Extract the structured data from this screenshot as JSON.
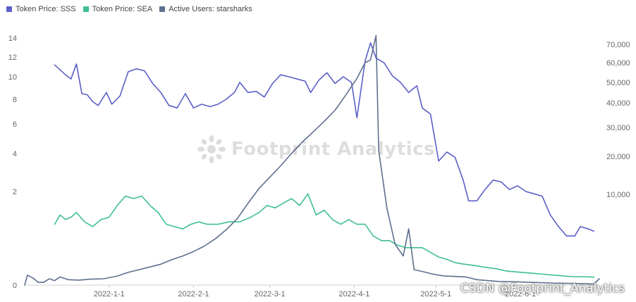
{
  "legend": [
    {
      "label": "Token Price: SSS",
      "color": "#5b5fc7"
    },
    {
      "label": "Token Price: SEA",
      "color": "#3fbf93"
    },
    {
      "label": "Active Users: starsharks",
      "color": "#5f6f8f"
    }
  ],
  "watermarks": {
    "footprint": "Footprint Analytics",
    "csdn": "CSDN @Footprint_Analytics"
  },
  "chart_data": {
    "type": "line",
    "x_tick_labels": [
      "2022-1-1",
      "2022-2-1",
      "2022-3-1",
      "2022-4-1",
      "2022-5-1",
      "2022-6-1"
    ],
    "x_range": [
      "2021-12-01",
      "2022-06-30"
    ],
    "left_axis": {
      "scale": "nonlinear",
      "tick_labels": [
        "0",
        "2",
        "4",
        "6",
        "8",
        "10",
        "12",
        "14"
      ],
      "tick_values": [
        0,
        2,
        4,
        6,
        8,
        10,
        12,
        14
      ],
      "range": [
        0,
        14.5
      ]
    },
    "right_axis": {
      "scale": "nonlinear",
      "tick_labels": [
        "10,000",
        "20,000",
        "30,000",
        "40,000",
        "50,000",
        "60,000",
        "70,000"
      ],
      "tick_values": [
        10000,
        20000,
        30000,
        40000,
        50000,
        60000,
        70000
      ]
    },
    "grid": false,
    "legend_position": "top-left",
    "series": [
      {
        "name": "Token Price: SSS",
        "axis": "left",
        "color": "#5b5fc7",
        "points": [
          [
            "2021-12-12",
            11.2
          ],
          [
            "2021-12-14",
            10.7
          ],
          [
            "2021-12-16",
            10.2
          ],
          [
            "2021-12-18",
            9.8
          ],
          [
            "2021-12-20",
            11.3
          ],
          [
            "2021-12-22",
            8.5
          ],
          [
            "2021-12-24",
            8.4
          ],
          [
            "2021-12-26",
            7.8
          ],
          [
            "2021-12-28",
            7.5
          ],
          [
            "2021-12-31",
            8.6
          ],
          [
            "2022-01-02",
            7.6
          ],
          [
            "2022-01-05",
            8.3
          ],
          [
            "2022-01-08",
            10.5
          ],
          [
            "2022-01-11",
            10.8
          ],
          [
            "2022-01-14",
            10.6
          ],
          [
            "2022-01-17",
            9.4
          ],
          [
            "2022-01-20",
            8.6
          ],
          [
            "2022-01-23",
            7.5
          ],
          [
            "2022-01-26",
            7.3
          ],
          [
            "2022-01-29",
            8.5
          ],
          [
            "2022-02-01",
            7.3
          ],
          [
            "2022-02-04",
            7.6
          ],
          [
            "2022-02-07",
            7.4
          ],
          [
            "2022-02-10",
            7.6
          ],
          [
            "2022-02-13",
            8.0
          ],
          [
            "2022-02-16",
            8.6
          ],
          [
            "2022-02-18",
            9.5
          ],
          [
            "2022-02-21",
            8.6
          ],
          [
            "2022-02-24",
            8.7
          ],
          [
            "2022-02-27",
            8.2
          ],
          [
            "2022-03-02",
            9.4
          ],
          [
            "2022-03-05",
            10.2
          ],
          [
            "2022-03-08",
            10.0
          ],
          [
            "2022-03-11",
            9.8
          ],
          [
            "2022-03-14",
            9.6
          ],
          [
            "2022-03-16",
            8.6
          ],
          [
            "2022-03-19",
            9.7
          ],
          [
            "2022-03-22",
            10.4
          ],
          [
            "2022-03-25",
            9.4
          ],
          [
            "2022-03-28",
            10.0
          ],
          [
            "2022-03-31",
            9.5
          ],
          [
            "2022-04-02",
            6.5
          ],
          [
            "2022-04-05",
            11.6
          ],
          [
            "2022-04-07",
            13.5
          ],
          [
            "2022-04-09",
            11.9
          ],
          [
            "2022-04-12",
            11.4
          ],
          [
            "2022-04-15",
            10.1
          ],
          [
            "2022-04-18",
            9.5
          ],
          [
            "2022-04-21",
            8.6
          ],
          [
            "2022-04-24",
            9.2
          ],
          [
            "2022-04-26",
            7.3
          ],
          [
            "2022-04-29",
            6.8
          ],
          [
            "2022-05-02",
            3.6
          ],
          [
            "2022-05-05",
            4.1
          ],
          [
            "2022-05-08",
            3.8
          ],
          [
            "2022-05-11",
            2.6
          ],
          [
            "2022-05-13",
            1.8
          ],
          [
            "2022-05-16",
            1.8
          ],
          [
            "2022-05-19",
            2.1
          ],
          [
            "2022-05-22",
            2.6
          ],
          [
            "2022-05-25",
            2.5
          ],
          [
            "2022-05-28",
            2.1
          ],
          [
            "2022-05-31",
            2.3
          ],
          [
            "2022-06-03",
            2.0
          ],
          [
            "2022-06-06",
            1.95
          ],
          [
            "2022-06-09",
            1.9
          ],
          [
            "2022-06-12",
            1.5
          ],
          [
            "2022-06-15",
            1.25
          ],
          [
            "2022-06-18",
            1.05
          ],
          [
            "2022-06-21",
            1.05
          ],
          [
            "2022-06-23",
            1.25
          ],
          [
            "2022-06-26",
            1.2
          ],
          [
            "2022-06-28",
            1.15
          ]
        ]
      },
      {
        "name": "Token Price: SEA",
        "axis": "left",
        "color": "#3fbf93",
        "points": [
          [
            "2021-12-12",
            1.3
          ],
          [
            "2021-12-14",
            1.5
          ],
          [
            "2021-12-16",
            1.4
          ],
          [
            "2021-12-18",
            1.45
          ],
          [
            "2021-12-20",
            1.55
          ],
          [
            "2021-12-23",
            1.35
          ],
          [
            "2021-12-26",
            1.25
          ],
          [
            "2021-12-29",
            1.4
          ],
          [
            "2022-01-01",
            1.45
          ],
          [
            "2022-01-04",
            1.7
          ],
          [
            "2022-01-07",
            1.9
          ],
          [
            "2022-01-10",
            1.85
          ],
          [
            "2022-01-13",
            1.9
          ],
          [
            "2022-01-16",
            1.7
          ],
          [
            "2022-01-19",
            1.55
          ],
          [
            "2022-01-22",
            1.3
          ],
          [
            "2022-01-25",
            1.25
          ],
          [
            "2022-01-28",
            1.2
          ],
          [
            "2022-01-31",
            1.3
          ],
          [
            "2022-02-03",
            1.35
          ],
          [
            "2022-02-06",
            1.3
          ],
          [
            "2022-02-10",
            1.3
          ],
          [
            "2022-02-14",
            1.35
          ],
          [
            "2022-02-18",
            1.35
          ],
          [
            "2022-02-22",
            1.45
          ],
          [
            "2022-02-25",
            1.55
          ],
          [
            "2022-02-28",
            1.7
          ],
          [
            "2022-03-03",
            1.65
          ],
          [
            "2022-03-06",
            1.75
          ],
          [
            "2022-03-09",
            1.85
          ],
          [
            "2022-03-12",
            1.7
          ],
          [
            "2022-03-15",
            1.95
          ],
          [
            "2022-03-18",
            1.5
          ],
          [
            "2022-03-21",
            1.6
          ],
          [
            "2022-03-24",
            1.4
          ],
          [
            "2022-03-27",
            1.3
          ],
          [
            "2022-03-30",
            1.4
          ],
          [
            "2022-04-02",
            1.3
          ],
          [
            "2022-04-05",
            1.3
          ],
          [
            "2022-04-08",
            1.05
          ],
          [
            "2022-04-11",
            0.95
          ],
          [
            "2022-04-14",
            0.95
          ],
          [
            "2022-04-17",
            0.85
          ],
          [
            "2022-04-20",
            0.8
          ],
          [
            "2022-04-23",
            0.8
          ],
          [
            "2022-04-26",
            0.8
          ],
          [
            "2022-04-29",
            0.7
          ],
          [
            "2022-05-02",
            0.6
          ],
          [
            "2022-05-05",
            0.55
          ],
          [
            "2022-05-08",
            0.48
          ],
          [
            "2022-05-11",
            0.45
          ],
          [
            "2022-05-15",
            0.42
          ],
          [
            "2022-05-19",
            0.38
          ],
          [
            "2022-05-23",
            0.35
          ],
          [
            "2022-05-27",
            0.3
          ],
          [
            "2022-05-31",
            0.28
          ],
          [
            "2022-06-04",
            0.26
          ],
          [
            "2022-06-08",
            0.24
          ],
          [
            "2022-06-12",
            0.22
          ],
          [
            "2022-06-16",
            0.2
          ],
          [
            "2022-06-20",
            0.18
          ],
          [
            "2022-06-24",
            0.18
          ],
          [
            "2022-06-28",
            0.17
          ]
        ]
      },
      {
        "name": "Active Users: starsharks",
        "axis": "right",
        "color": "#5f6f8f",
        "points": [
          [
            "2021-12-01",
            0
          ],
          [
            "2021-12-02",
            1100
          ],
          [
            "2021-12-04",
            800
          ],
          [
            "2021-12-06",
            300
          ],
          [
            "2021-12-08",
            300
          ],
          [
            "2021-12-10",
            700
          ],
          [
            "2021-12-12",
            500
          ],
          [
            "2021-12-14",
            900
          ],
          [
            "2021-12-17",
            600
          ],
          [
            "2021-12-21",
            550
          ],
          [
            "2021-12-25",
            650
          ],
          [
            "2021-12-30",
            700
          ],
          [
            "2022-01-04",
            1000
          ],
          [
            "2022-01-08",
            1400
          ],
          [
            "2022-01-12",
            1700
          ],
          [
            "2022-01-16",
            2000
          ],
          [
            "2022-01-20",
            2300
          ],
          [
            "2022-01-24",
            2800
          ],
          [
            "2022-01-28",
            3200
          ],
          [
            "2022-02-01",
            3700
          ],
          [
            "2022-02-05",
            4300
          ],
          [
            "2022-02-09",
            5100
          ],
          [
            "2022-02-13",
            6100
          ],
          [
            "2022-02-17",
            7300
          ],
          [
            "2022-02-21",
            9000
          ],
          [
            "2022-02-25",
            11500
          ],
          [
            "2022-03-01",
            14500
          ],
          [
            "2022-03-05",
            17500
          ],
          [
            "2022-03-09",
            21000
          ],
          [
            "2022-03-13",
            25000
          ],
          [
            "2022-03-17",
            28500
          ],
          [
            "2022-03-21",
            32500
          ],
          [
            "2022-03-25",
            37000
          ],
          [
            "2022-03-29",
            44000
          ],
          [
            "2022-04-02",
            52000
          ],
          [
            "2022-04-05",
            60000
          ],
          [
            "2022-04-07",
            61500
          ],
          [
            "2022-04-09",
            75000
          ],
          [
            "2022-04-10",
            22000
          ],
          [
            "2022-04-13",
            8500
          ],
          [
            "2022-04-16",
            4500
          ],
          [
            "2022-04-19",
            3200
          ],
          [
            "2022-04-21",
            6200
          ],
          [
            "2022-04-23",
            1700
          ],
          [
            "2022-04-26",
            1500
          ],
          [
            "2022-04-30",
            1200
          ],
          [
            "2022-05-04",
            1000
          ],
          [
            "2022-05-08",
            950
          ],
          [
            "2022-05-12",
            900
          ],
          [
            "2022-05-16",
            600
          ],
          [
            "2022-05-20",
            500
          ],
          [
            "2022-05-24",
            400
          ],
          [
            "2022-05-28",
            380
          ],
          [
            "2022-06-01",
            340
          ],
          [
            "2022-06-05",
            300
          ],
          [
            "2022-06-09",
            260
          ],
          [
            "2022-06-13",
            220
          ],
          [
            "2022-06-17",
            200
          ],
          [
            "2022-06-21",
            180
          ],
          [
            "2022-06-25",
            150
          ],
          [
            "2022-06-28",
            120
          ],
          [
            "2022-06-30",
            700
          ]
        ]
      }
    ]
  }
}
